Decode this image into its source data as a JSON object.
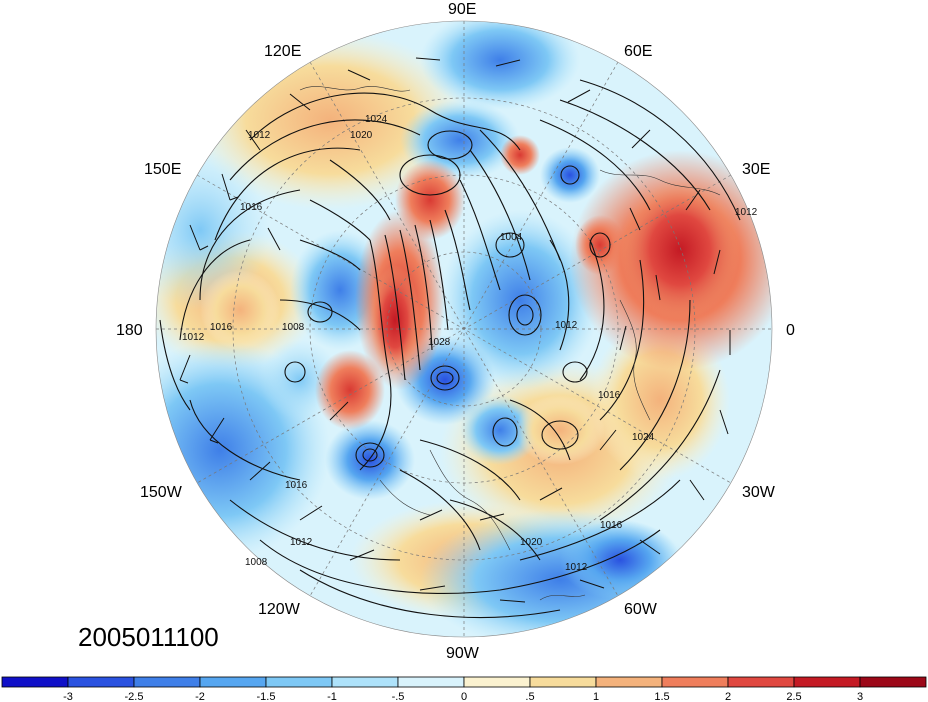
{
  "map": {
    "projection": "polar-stereographic-north",
    "longitude_labels": [
      "90E",
      "60E",
      "30E",
      "0",
      "30W",
      "60W",
      "90W",
      "120W",
      "150W",
      "180",
      "150E",
      "120E"
    ],
    "contour_labels": [
      "1012",
      "1016",
      "1020",
      "1024",
      "1004",
      "1008",
      "1028"
    ],
    "date_label": "2005011100"
  },
  "colorbar": {
    "tick_labels": [
      "-3",
      "-2.5",
      "-2",
      "-1.5",
      "-1",
      "-.5",
      "0",
      ".5",
      "1",
      "1.5",
      "2",
      "2.5",
      "3"
    ],
    "colors": [
      "#1010c8",
      "#2a52e0",
      "#3f7fe8",
      "#56a6f0",
      "#7ec8f5",
      "#aee2fa",
      "#d9f3fc",
      "#fbf2d0",
      "#f7dc9c",
      "#f4b27c",
      "#ef7e5c",
      "#e04840",
      "#c41a24",
      "#9c0818"
    ]
  }
}
